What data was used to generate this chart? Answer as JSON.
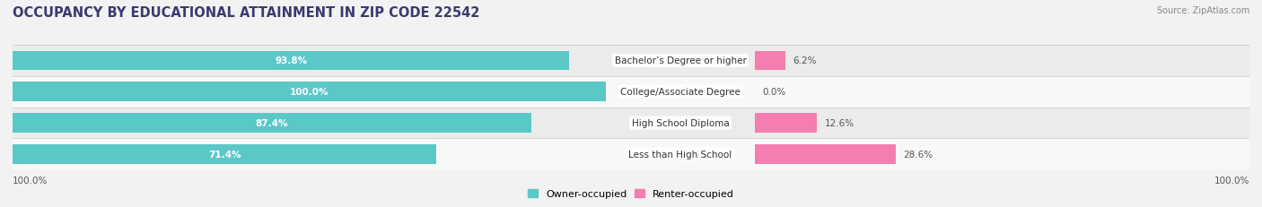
{
  "title": "OCCUPANCY BY EDUCATIONAL ATTAINMENT IN ZIP CODE 22542",
  "source": "Source: ZipAtlas.com",
  "categories": [
    "Less than High School",
    "High School Diploma",
    "College/Associate Degree",
    "Bachelor’s Degree or higher"
  ],
  "owner_values": [
    71.4,
    87.4,
    100.0,
    93.8
  ],
  "renter_values": [
    28.6,
    12.6,
    0.0,
    6.2
  ],
  "owner_color": "#5BC8C8",
  "renter_color": "#F47EB0",
  "bar_height": 0.62,
  "background_color": "#f2f2f2",
  "row_bg_odd": "#ebebeb",
  "row_bg_even": "#f8f8f8",
  "title_color": "#3a3a72",
  "source_color": "#888888",
  "label_color_white": "#ffffff",
  "label_color_dark": "#555555",
  "center_label_color": "#333333",
  "xlim_left": 100,
  "xlim_right": 100,
  "x_left_label": "100.0%",
  "x_right_label": "100.0%",
  "legend_owner": "Owner-occupied",
  "legend_renter": "Renter-occupied",
  "title_fontsize": 10.5,
  "bar_label_fontsize": 7.5,
  "cat_label_fontsize": 7.5,
  "legend_fontsize": 8
}
